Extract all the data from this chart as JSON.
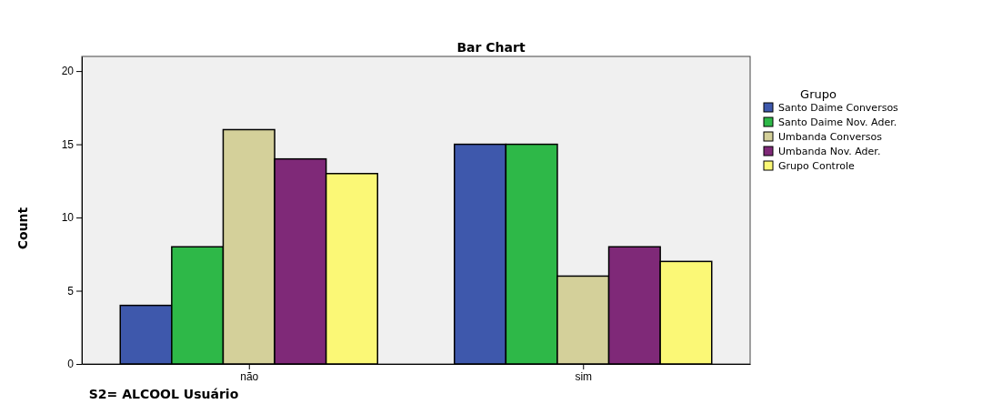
{
  "chart_data": {
    "type": "bar",
    "title": "Bar Chart",
    "xlabel": "S2= ALCOOL  Usuário",
    "ylabel": "Count",
    "legend_title": "Grupo",
    "legend": "right",
    "categories": [
      "não",
      "sim"
    ],
    "ylim": [
      0,
      21
    ],
    "yticks": [
      0,
      5,
      10,
      15,
      20
    ],
    "series": [
      {
        "name": "Santo Daime Conversos",
        "color": "#3e58ac",
        "values": [
          4,
          15
        ]
      },
      {
        "name": "Santo Daime Nov. Ader.",
        "color": "#2eb848",
        "values": [
          8,
          15
        ]
      },
      {
        "name": "Umbanda Conversos",
        "color": "#d4d09a",
        "values": [
          16,
          6
        ]
      },
      {
        "name": "Umbanda Nov. Ader.",
        "color": "#7f2978",
        "values": [
          14,
          8
        ]
      },
      {
        "name": "Grupo Controle",
        "color": "#fbf876",
        "values": [
          13,
          7
        ]
      }
    ]
  }
}
